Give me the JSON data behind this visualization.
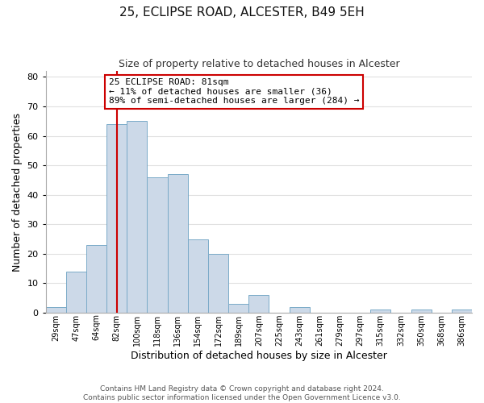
{
  "title": "25, ECLIPSE ROAD, ALCESTER, B49 5EH",
  "subtitle": "Size of property relative to detached houses in Alcester",
  "xlabel": "Distribution of detached houses by size in Alcester",
  "ylabel": "Number of detached properties",
  "bar_color": "#ccd9e8",
  "bar_edge_color": "#7aaac8",
  "bin_labels": [
    "29sqm",
    "47sqm",
    "64sqm",
    "82sqm",
    "100sqm",
    "118sqm",
    "136sqm",
    "154sqm",
    "172sqm",
    "189sqm",
    "207sqm",
    "225sqm",
    "243sqm",
    "261sqm",
    "279sqm",
    "297sqm",
    "315sqm",
    "332sqm",
    "350sqm",
    "368sqm",
    "386sqm"
  ],
  "bar_heights": [
    2,
    14,
    23,
    64,
    65,
    46,
    47,
    25,
    20,
    3,
    6,
    0,
    2,
    0,
    0,
    0,
    1,
    0,
    1,
    0,
    1
  ],
  "ylim": [
    0,
    82
  ],
  "yticks": [
    0,
    10,
    20,
    30,
    40,
    50,
    60,
    70,
    80
  ],
  "marker_x_label": "82sqm",
  "annotation_line0": "25 ECLIPSE ROAD: 81sqm",
  "annotation_line1": "← 11% of detached houses are smaller (36)",
  "annotation_line2": "89% of semi-detached houses are larger (284) →",
  "annotation_box_color": "#ffffff",
  "annotation_box_edge": "#cc0000",
  "marker_line_color": "#cc0000",
  "footer1": "Contains HM Land Registry data © Crown copyright and database right 2024.",
  "footer2": "Contains public sector information licensed under the Open Government Licence v3.0.",
  "background_color": "#ffffff",
  "grid_color": "#e0e0e0"
}
